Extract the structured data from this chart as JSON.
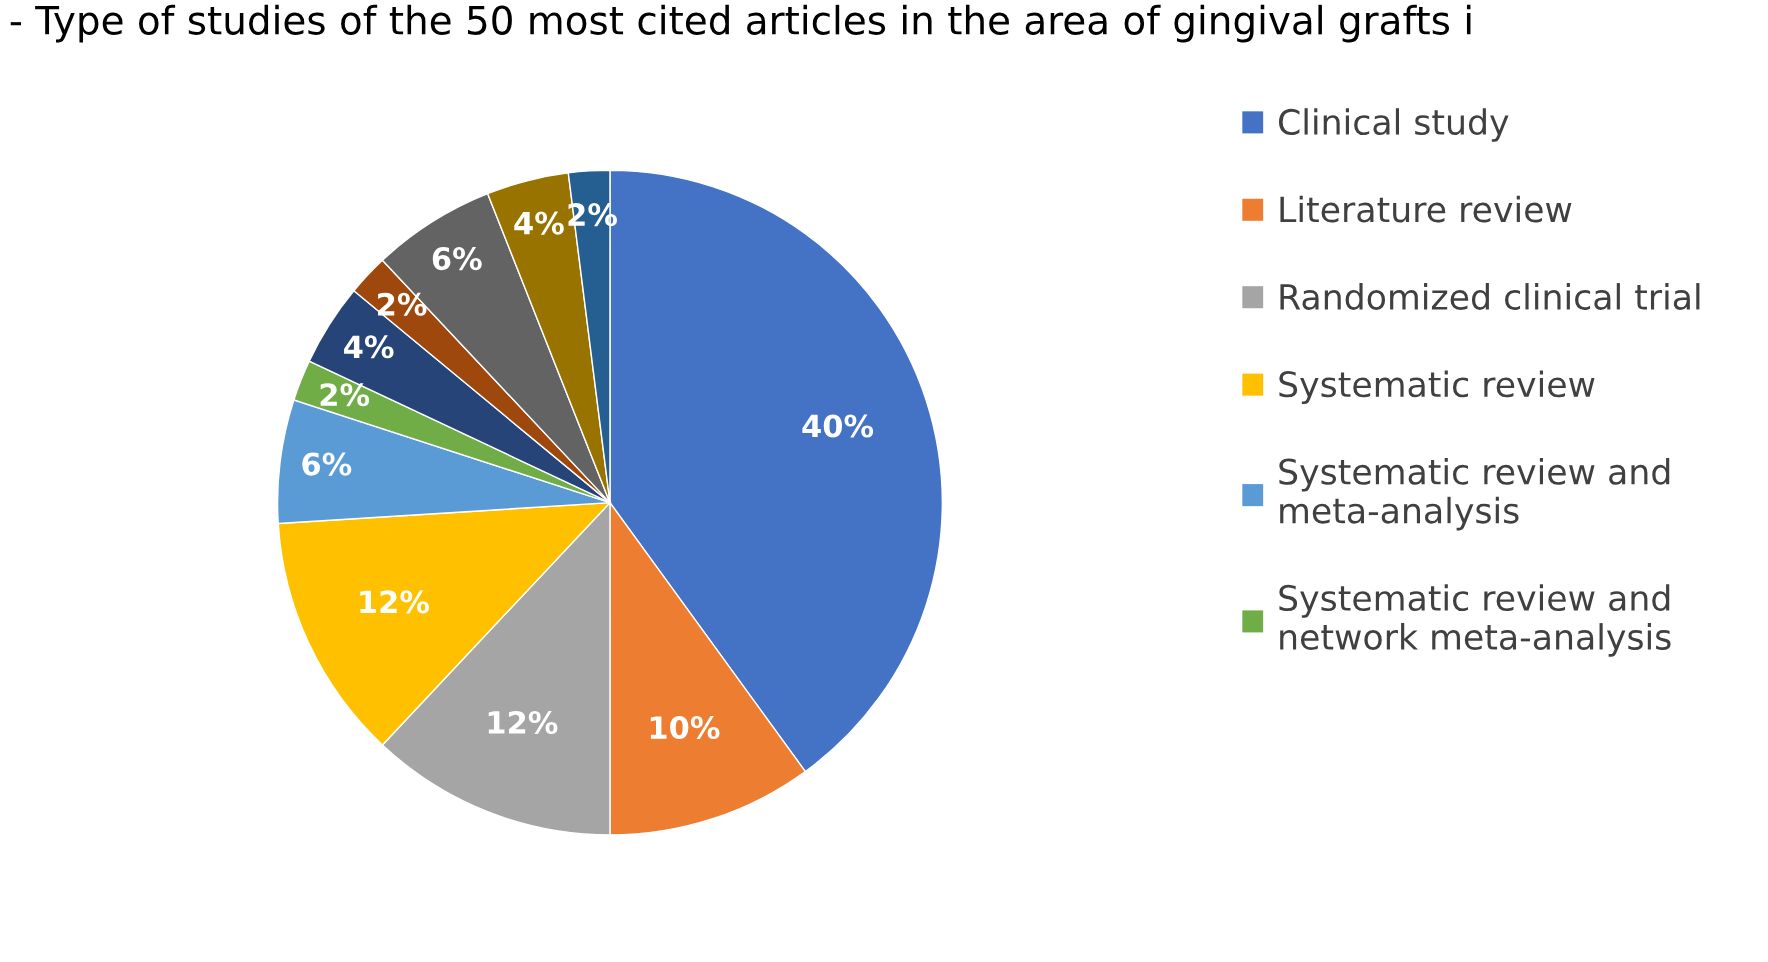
{
  "chart_data": {
    "type": "pie",
    "title": "- Type of studies of the 50 most cited articles in the area of gingival grafts i",
    "categories": [
      "Clinical study",
      "Literature review",
      "Randomized clinical trial",
      "Systematic review",
      "Systematic review and\nmeta-analysis",
      "Systematic review and\nnetwork meta-analysis",
      null,
      null,
      null,
      null,
      null
    ],
    "values": [
      40,
      10,
      12,
      12,
      6,
      2,
      4,
      2,
      6,
      4,
      2
    ],
    "colors": [
      "#4472c4",
      "#ed7d31",
      "#a5a5a5",
      "#ffc000",
      "#5b9bd5",
      "#70ad47",
      "#264478",
      "#9e480e",
      "#636363",
      "#997300",
      "#255e91"
    ],
    "value_labels": [
      "40%",
      "10%",
      "12%",
      "12%",
      "6%",
      "2%",
      "4%",
      "2%",
      "6%",
      "4%",
      "2%"
    ],
    "legend": "right"
  }
}
